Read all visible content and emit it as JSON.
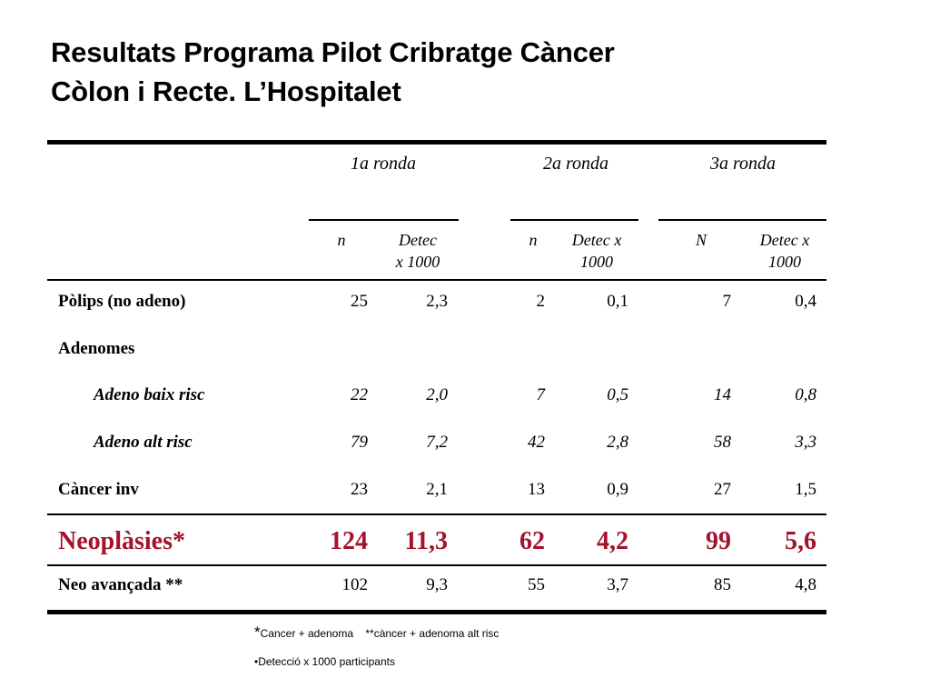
{
  "title": {
    "line1": "Resultats Programa Pilot Cribratge Càncer",
    "line2": "Còlon i Recte.  L’Hospitalet"
  },
  "table": {
    "rounds": [
      "1a ronda",
      "2a ronda",
      "3a ronda"
    ],
    "subheaders": [
      {
        "n": "n",
        "det1": "Detec",
        "det2": "x 1000"
      },
      {
        "n": "n",
        "det1": "Detec x",
        "det2": "1000"
      },
      {
        "n": "N",
        "det1": "Detec x",
        "det2": "1000"
      }
    ],
    "rows": {
      "polips": {
        "label": "Pòlips (no adeno)",
        "v": [
          "25",
          "2,3",
          "2",
          "0,1",
          "7",
          "0,4"
        ]
      },
      "adenomes": {
        "label": "Adenomes"
      },
      "baix": {
        "label": "Adeno baix risc",
        "v": [
          "22",
          "2,0",
          "7",
          "0,5",
          "14",
          "0,8"
        ]
      },
      "alt": {
        "label": "Adeno alt risc",
        "v": [
          "79",
          "7,2",
          "42",
          "2,8",
          "58",
          "3,3"
        ]
      },
      "cancer": {
        "label": "Càncer inv",
        "v": [
          "23",
          "2,1",
          "13",
          "0,9",
          "27",
          "1,5"
        ]
      },
      "neo": {
        "label": "Neoplàsies*",
        "v": [
          "124",
          "11,3",
          "62",
          "4,2",
          "99",
          "5,6"
        ]
      },
      "avan": {
        "label": "Neo avançada **",
        "v": [
          "102",
          "9,3",
          "55",
          "3,7",
          "85",
          "4,8"
        ]
      }
    }
  },
  "footnotes": {
    "star": "*",
    "line1": "Cancer + adenoma    **càncer + adenoma alt risc",
    "line2": "•Detecció x 1000 participants"
  },
  "colors": {
    "highlight": "#a3132b"
  }
}
